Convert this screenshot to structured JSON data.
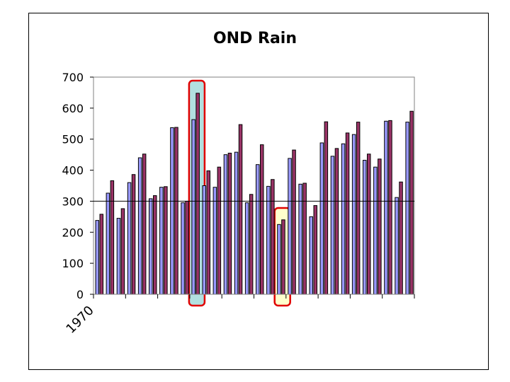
{
  "chart_data": {
    "type": "bar",
    "title": "OND Rain",
    "xlabel": "",
    "ylabel": "",
    "ylim": [
      0,
      700
    ],
    "yticks": [
      "0",
      "100",
      "200",
      "300",
      "400",
      "500",
      "600",
      "700"
    ],
    "x_start_label": "1970",
    "reference_line": 300,
    "grid": false,
    "legend": "none",
    "colors": {
      "series_a": "#9999ff",
      "series_b": "#993366",
      "frame": "#000000",
      "highlight_red_fill": "#b2e0e0",
      "highlight_red_edge": "#e00000",
      "highlight_yellow_fill": "#ffffcc",
      "highlight_yellow_edge": "#e00000"
    },
    "series": [
      {
        "values": [
          238,
          326,
          245,
          360,
          440,
          308,
          345,
          537,
          295,
          563,
          350,
          345,
          450,
          458,
          295,
          418,
          348,
          225,
          438,
          355,
          250,
          488,
          445,
          485,
          515,
          432,
          410,
          558,
          312,
          555
        ]
      },
      {
        "values": [
          258,
          366,
          276,
          386,
          452,
          318,
          347,
          538,
          300,
          648,
          398,
          410,
          455,
          547,
          322,
          482,
          370,
          240,
          465,
          358,
          286,
          556,
          470,
          520,
          555,
          452,
          436,
          560,
          362,
          590
        ]
      }
    ],
    "highlights": [
      {
        "index": 9,
        "style": "red"
      },
      {
        "index": 17,
        "style": "yellow"
      }
    ]
  }
}
